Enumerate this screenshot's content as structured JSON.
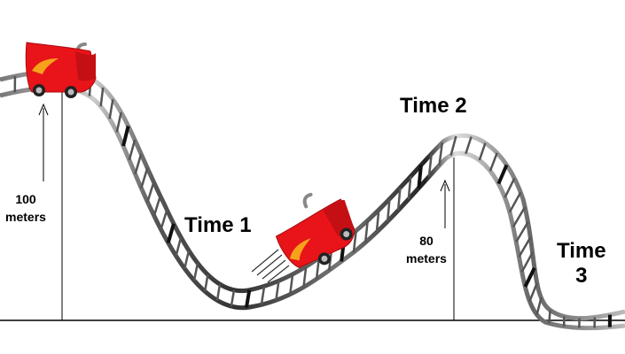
{
  "labels": {
    "time1": "Time 1",
    "time2": "Time 2",
    "time3_line1": "Time",
    "time3_line2": "3"
  },
  "heights": {
    "start": {
      "value": "100",
      "unit": "meters"
    },
    "hill2": {
      "value": "80",
      "unit": "meters"
    }
  },
  "colors": {
    "car_body": "#e8141a",
    "car_shadow": "#a80c10",
    "flame": "#f6a21a",
    "track_dark": "#333333",
    "track_light": "#dddddd"
  }
}
